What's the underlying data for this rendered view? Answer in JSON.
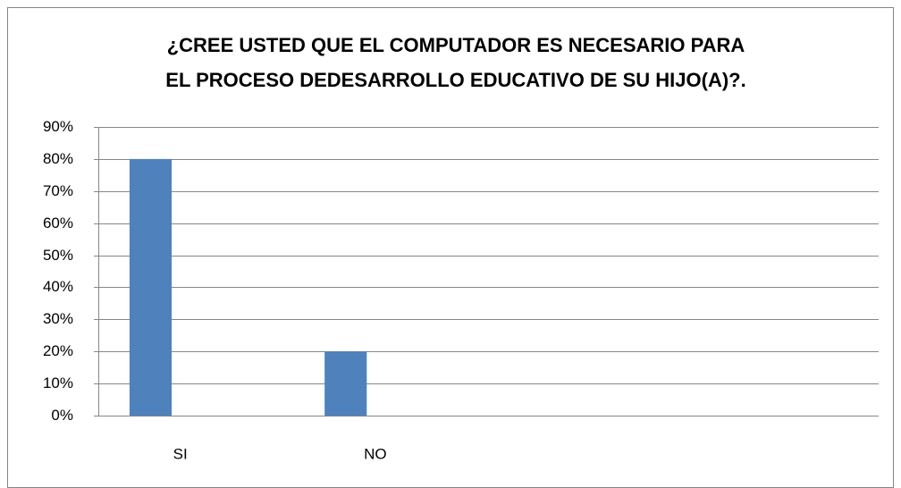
{
  "chart_data": {
    "type": "bar",
    "title": [
      "¿CREE USTED QUE EL COMPUTADOR  ES NECESARIO  PARA",
      "EL PROCESO DEDESARROLLO EDUCATIVO DE SU HIJO(A)?."
    ],
    "categories": [
      "SI",
      "NO",
      null,
      null
    ],
    "values": [
      80,
      20,
      null,
      null
    ],
    "color": "#4f81bd",
    "ylim": [
      0,
      90
    ],
    "yticks": [
      {
        "value": 0,
        "label": "0%"
      },
      {
        "value": 10,
        "label": "10%"
      },
      {
        "value": 20,
        "label": "20%"
      },
      {
        "value": 30,
        "label": "30%"
      },
      {
        "value": 40,
        "label": "40%"
      },
      {
        "value": 50,
        "label": "50%"
      },
      {
        "value": 60,
        "label": "60%"
      },
      {
        "value": 70,
        "label": "70%"
      },
      {
        "value": 80,
        "label": "80%"
      },
      {
        "value": 90,
        "label": "90%"
      }
    ],
    "grid": true
  }
}
